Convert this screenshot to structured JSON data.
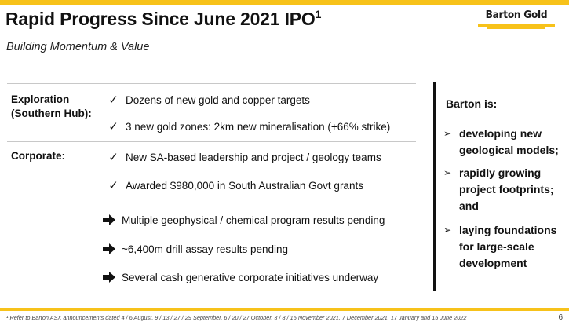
{
  "header": {
    "title": "Rapid Progress Since June 2021 IPO",
    "title_sup": "1",
    "subtitle": "Building Momentum & Value",
    "logo_text": "Barton Gold"
  },
  "sections": [
    {
      "label_line1": "Exploration",
      "label_line2": "(Southern Hub):",
      "items": [
        "Dozens of new gold and copper targets",
        "3 new gold zones: 2km new mineralisation (+66% strike)"
      ]
    },
    {
      "label_line1": "Corporate:",
      "items": [
        "New SA-based leadership and project / geology teams",
        "Awarded $980,000 in South Australian Govt grants"
      ]
    }
  ],
  "pending": [
    "Multiple geophysical / chemical program results pending",
    "~6,400m drill assay results pending",
    "Several cash generative corporate initiatives underway"
  ],
  "sidebar": {
    "heading": "Barton is:",
    "bullets": [
      {
        "line1": "developing new",
        "line2": "geological models;"
      },
      {
        "line1": "rapidly growing",
        "line2": "project footprints;",
        "line3": "and"
      },
      {
        "line1": "laying foundations",
        "line2": "for large-scale",
        "line3": "development"
      }
    ]
  },
  "footnote": "¹ Refer to Barton ASX announcements dated 4 / 6 August, 9 / 13 / 27 / 29 September, 6 / 20 / 27 October, 3 / 8 / 15 November 2021, 7 December 2021, 17 January and 15 June 2022",
  "page_number": "6",
  "icons": {
    "check": "checkmark-icon",
    "arrow": "right-arrow-icon",
    "bullet": "chevron-right-icon"
  },
  "colors": {
    "accent": "#f7c21a",
    "text": "#111111"
  }
}
